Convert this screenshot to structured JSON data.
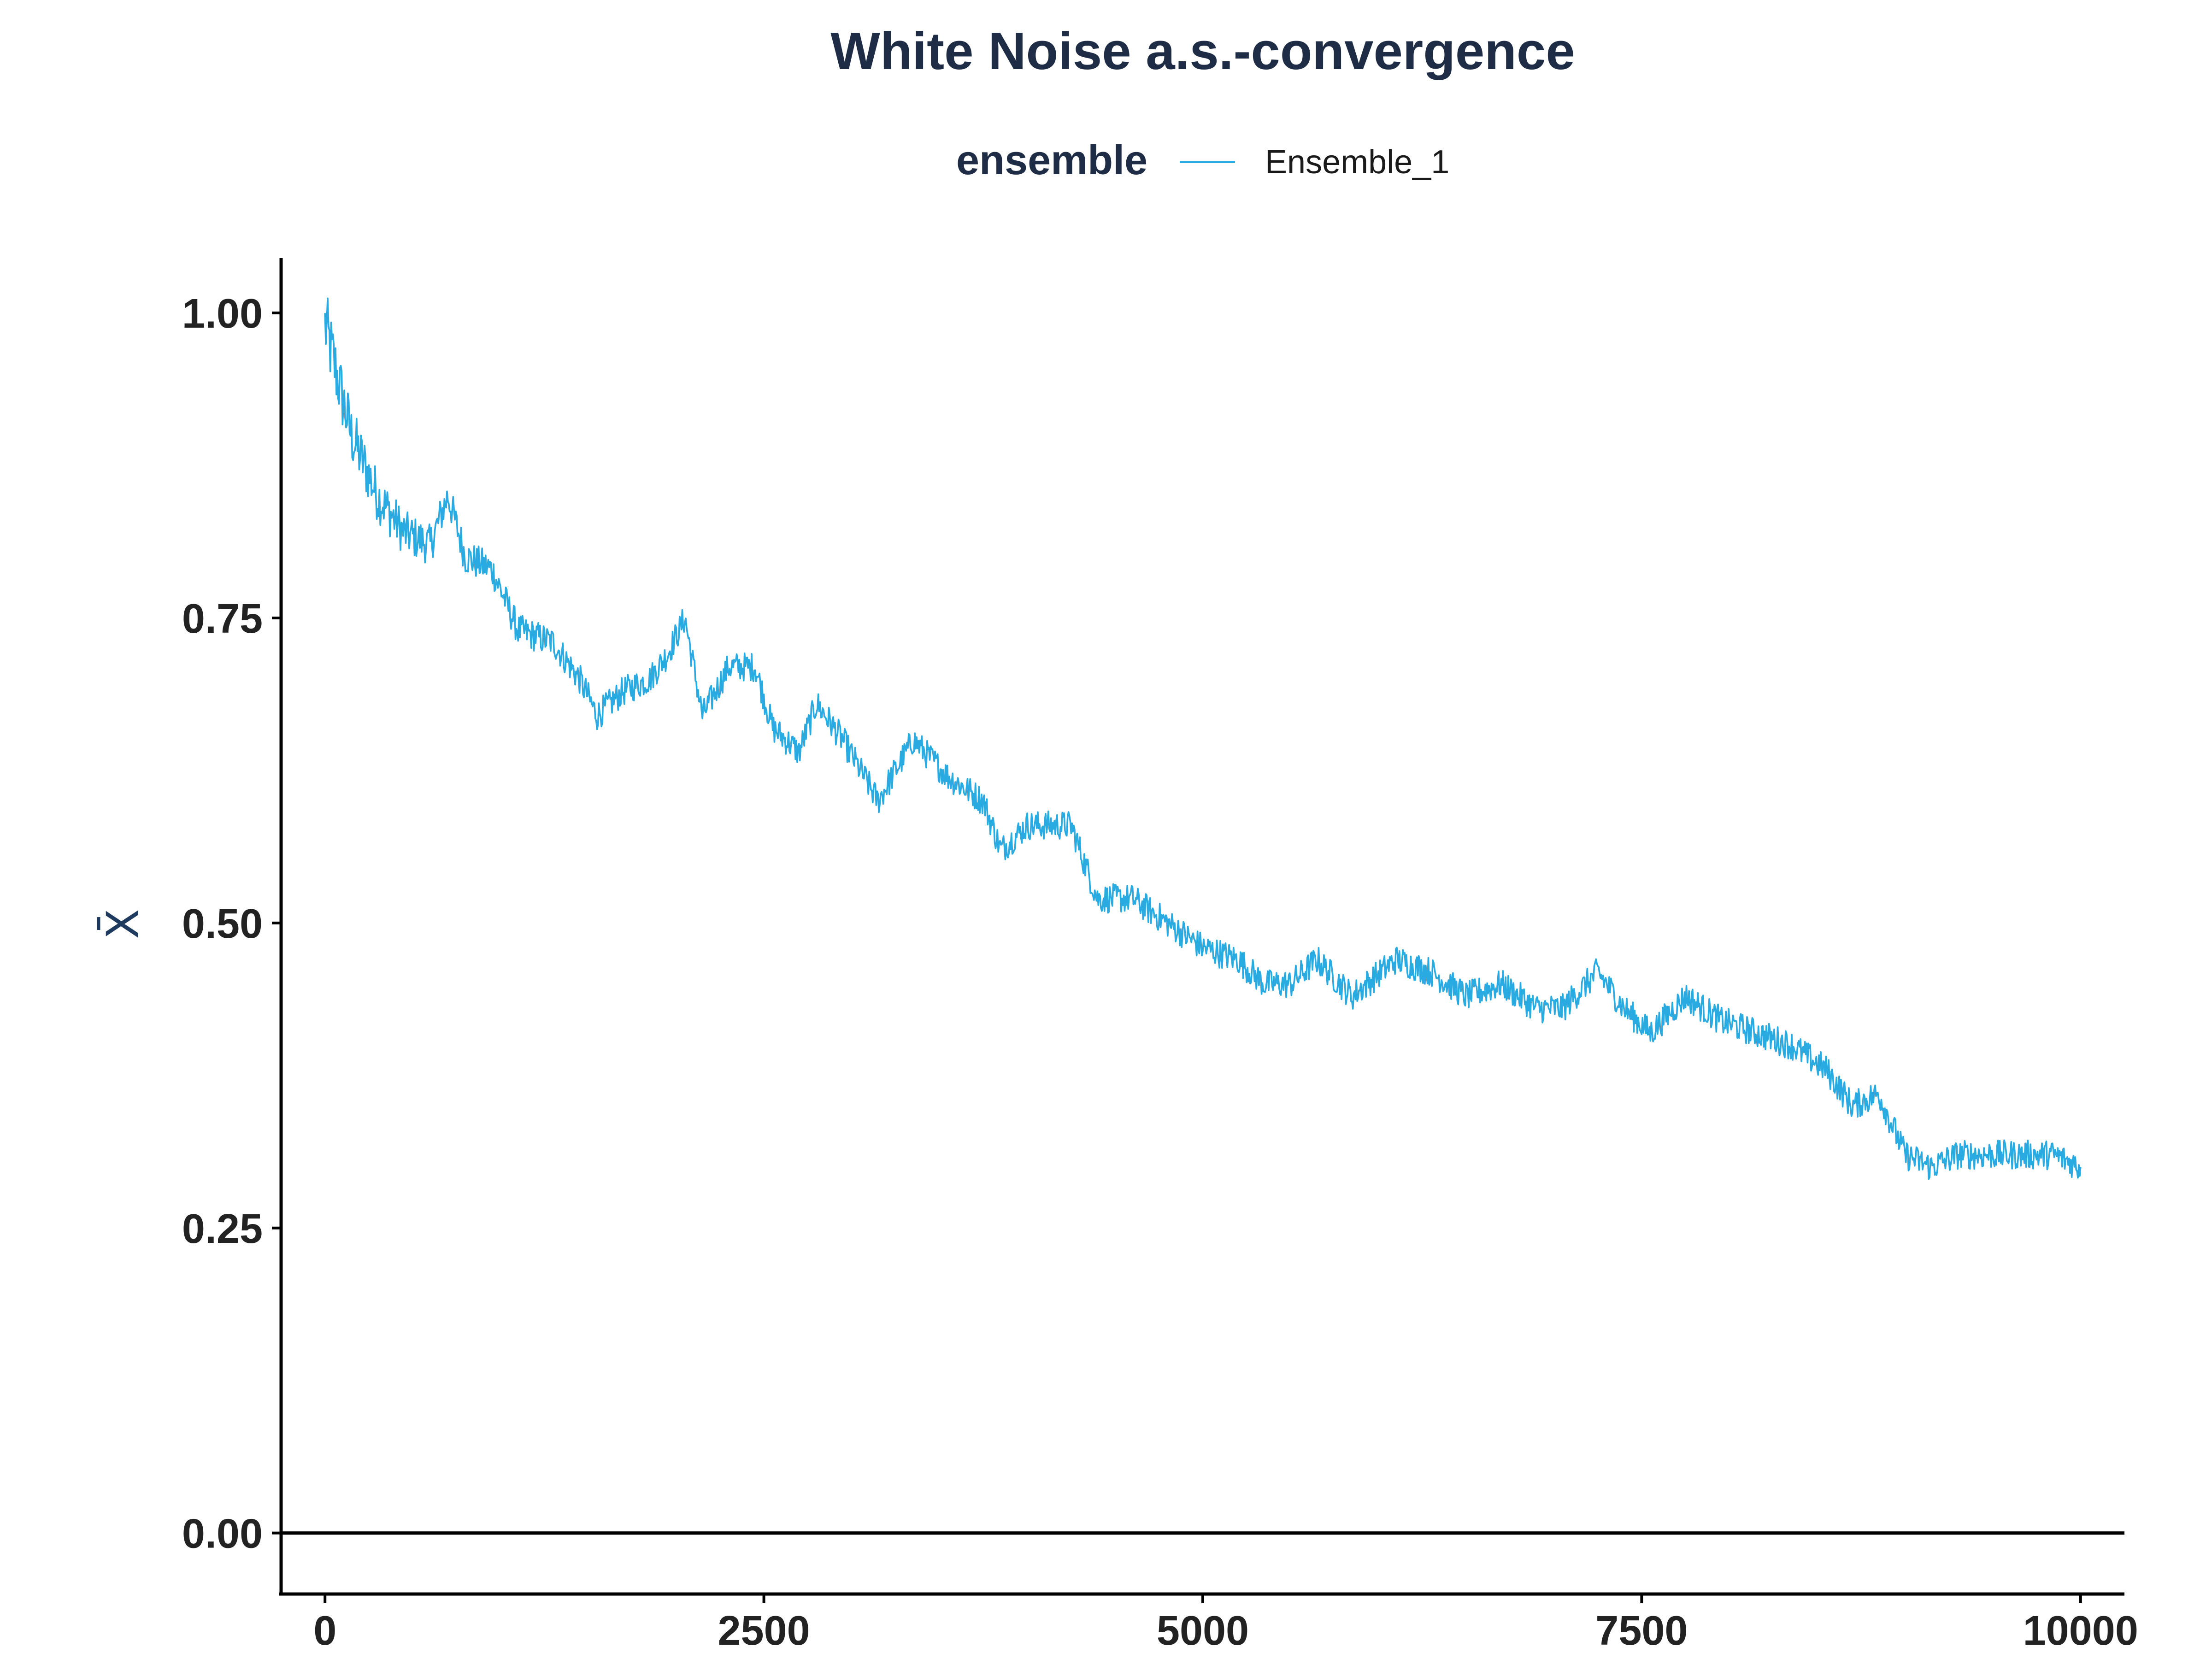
{
  "chart_data": {
    "type": "line",
    "title": "White Noise a.s.-convergence",
    "xlabel": "",
    "ylabel": "X̄",
    "xlim": [
      -250,
      10250
    ],
    "ylim": [
      -0.05,
      1.045
    ],
    "x_ticks": [
      0,
      2500,
      5000,
      7500,
      10000
    ],
    "x_tick_labels": [
      "0",
      "2500",
      "5000",
      "7500",
      "10000"
    ],
    "y_ticks": [
      0,
      0.25,
      0.5,
      0.75,
      1
    ],
    "y_tick_labels": [
      "0.00",
      "0.25",
      "0.50",
      "0.75",
      "1.00"
    ],
    "hline": 0,
    "grid": false,
    "legend": {
      "title": "ensemble",
      "position": "top"
    },
    "colors": {
      "line": "#29abe2",
      "text": "#1e2d45",
      "axis": "#000000"
    },
    "series": [
      {
        "name": "Ensemble_1",
        "anchors": [
          [
            0,
            0.99
          ],
          [
            50,
            0.96
          ],
          [
            150,
            0.9
          ],
          [
            300,
            0.85
          ],
          [
            450,
            0.82
          ],
          [
            600,
            0.81
          ],
          [
            700,
            0.85
          ],
          [
            800,
            0.8
          ],
          [
            950,
            0.79
          ],
          [
            1100,
            0.74
          ],
          [
            1300,
            0.73
          ],
          [
            1450,
            0.7
          ],
          [
            1550,
            0.67
          ],
          [
            1700,
            0.69
          ],
          [
            1850,
            0.7
          ],
          [
            1950,
            0.72
          ],
          [
            2050,
            0.75
          ],
          [
            2150,
            0.67
          ],
          [
            2300,
            0.71
          ],
          [
            2450,
            0.71
          ],
          [
            2550,
            0.66
          ],
          [
            2700,
            0.64
          ],
          [
            2800,
            0.68
          ],
          [
            2950,
            0.65
          ],
          [
            3150,
            0.6
          ],
          [
            3350,
            0.65
          ],
          [
            3550,
            0.62
          ],
          [
            3750,
            0.6
          ],
          [
            3850,
            0.56
          ],
          [
            4000,
            0.58
          ],
          [
            4250,
            0.58
          ],
          [
            4400,
            0.52
          ],
          [
            4600,
            0.52
          ],
          [
            4800,
            0.5
          ],
          [
            5000,
            0.48
          ],
          [
            5200,
            0.47
          ],
          [
            5350,
            0.45
          ],
          [
            5500,
            0.45
          ],
          [
            5650,
            0.47
          ],
          [
            5850,
            0.44
          ],
          [
            6100,
            0.47
          ],
          [
            6300,
            0.46
          ],
          [
            6500,
            0.44
          ],
          [
            6700,
            0.45
          ],
          [
            6900,
            0.43
          ],
          [
            7050,
            0.43
          ],
          [
            7250,
            0.46
          ],
          [
            7400,
            0.43
          ],
          [
            7550,
            0.41
          ],
          [
            7750,
            0.44
          ],
          [
            7950,
            0.42
          ],
          [
            8150,
            0.41
          ],
          [
            8350,
            0.4
          ],
          [
            8550,
            0.38
          ],
          [
            8700,
            0.35
          ],
          [
            8850,
            0.36
          ],
          [
            9000,
            0.31
          ],
          [
            9150,
            0.3
          ],
          [
            9300,
            0.31
          ],
          [
            9500,
            0.31
          ],
          [
            9700,
            0.31
          ],
          [
            9850,
            0.31
          ],
          [
            10000,
            0.3
          ]
        ]
      }
    ]
  }
}
